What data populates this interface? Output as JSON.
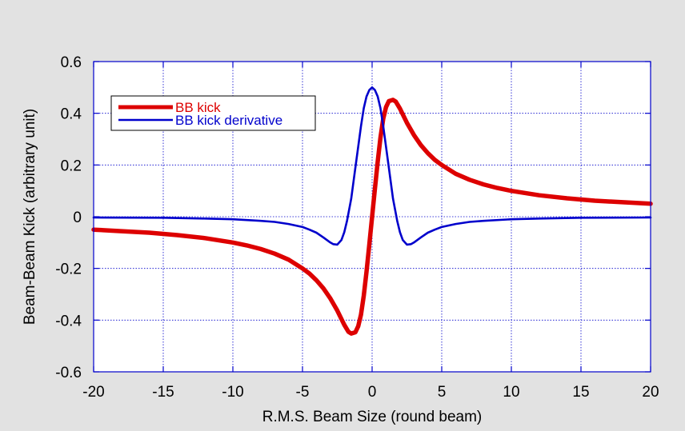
{
  "chart_data": {
    "type": "line",
    "title": "",
    "xlabel": "R.M.S. Beam Size (round beam)",
    "ylabel": "Beam-Beam Kick (arbitrary unit)",
    "xlim": [
      -20,
      20
    ],
    "ylim": [
      -0.6,
      0.6
    ],
    "x_ticks": [
      -20,
      -15,
      -10,
      -5,
      0,
      5,
      10,
      15,
      20
    ],
    "y_ticks": [
      -0.6,
      -0.4,
      -0.2,
      0,
      0.2,
      0.4,
      0.6
    ],
    "x_tick_labels": [
      "-20",
      "-15",
      "-10",
      "-5",
      "0",
      "5",
      "10",
      "15",
      "20"
    ],
    "y_tick_labels": [
      "-0.6",
      "-0.4",
      "-0.2",
      "0",
      "0.2",
      "0.4",
      "0.6"
    ],
    "grid": true,
    "legend_position": "top-left",
    "series": [
      {
        "name": "BB kick",
        "color": "#dd0000",
        "x": [
          -20,
          -18,
          -16,
          -14,
          -12,
          -10,
          -9,
          -8,
          -7,
          -6,
          -5,
          -4.5,
          -4,
          -3.5,
          -3,
          -2.5,
          -2,
          -1.7,
          -1.5,
          -1.2,
          -1,
          -0.8,
          -0.6,
          -0.4,
          -0.2,
          0,
          0.2,
          0.4,
          0.6,
          0.8,
          1,
          1.2,
          1.5,
          1.7,
          2,
          2.5,
          3,
          3.5,
          4,
          4.5,
          5,
          6,
          7,
          8,
          9,
          10,
          12,
          14,
          16,
          18,
          20
        ],
        "values": [
          -0.05,
          -0.056,
          -0.062,
          -0.071,
          -0.083,
          -0.1,
          -0.111,
          -0.125,
          -0.143,
          -0.166,
          -0.2,
          -0.22,
          -0.246,
          -0.277,
          -0.316,
          -0.363,
          -0.418,
          -0.445,
          -0.452,
          -0.447,
          -0.424,
          -0.379,
          -0.305,
          -0.213,
          -0.108,
          0,
          0.108,
          0.213,
          0.305,
          0.379,
          0.424,
          0.447,
          0.452,
          0.445,
          0.418,
          0.363,
          0.316,
          0.277,
          0.246,
          0.22,
          0.2,
          0.166,
          0.143,
          0.125,
          0.111,
          0.1,
          0.083,
          0.071,
          0.062,
          0.056,
          0.05
        ]
      },
      {
        "name": "BB kick derivative",
        "color": "#0000cc",
        "x": [
          -20,
          -15,
          -12,
          -10,
          -8,
          -7,
          -6,
          -5,
          -4.5,
          -4,
          -3.5,
          -3,
          -2.8,
          -2.5,
          -2.2,
          -2,
          -1.8,
          -1.5,
          -1.2,
          -1,
          -0.8,
          -0.6,
          -0.4,
          -0.2,
          0,
          0.2,
          0.4,
          0.6,
          0.8,
          1,
          1.2,
          1.5,
          1.8,
          2,
          2.2,
          2.5,
          2.8,
          3,
          3.5,
          4,
          4.5,
          5,
          6,
          7,
          8,
          10,
          12,
          15,
          20
        ],
        "values": [
          -0.003,
          -0.004,
          -0.007,
          -0.01,
          -0.016,
          -0.02,
          -0.028,
          -0.04,
          -0.05,
          -0.062,
          -0.08,
          -0.1,
          -0.106,
          -0.108,
          -0.09,
          -0.06,
          -0.015,
          0.07,
          0.19,
          0.27,
          0.35,
          0.42,
          0.465,
          0.49,
          0.5,
          0.49,
          0.465,
          0.42,
          0.35,
          0.27,
          0.19,
          0.07,
          -0.015,
          -0.06,
          -0.09,
          -0.108,
          -0.106,
          -0.1,
          -0.08,
          -0.062,
          -0.05,
          -0.04,
          -0.028,
          -0.02,
          -0.016,
          -0.01,
          -0.007,
          -0.004,
          -0.003
        ]
      }
    ]
  }
}
